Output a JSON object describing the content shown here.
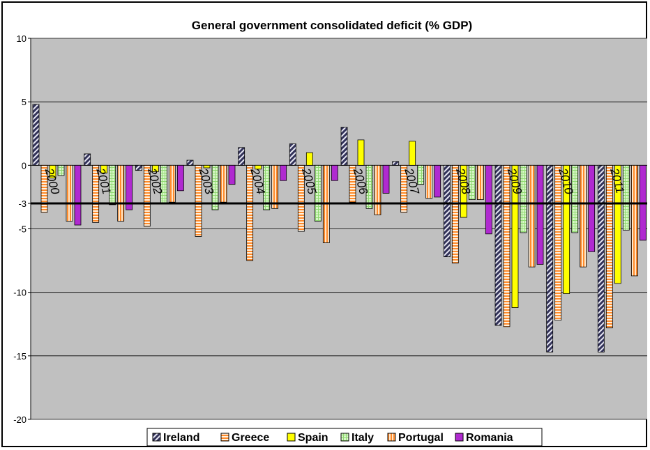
{
  "chart_data": {
    "type": "bar",
    "title": "General government consolidated deficit (% GDP)",
    "xlabel": "",
    "ylabel": "",
    "ylim": [
      -20,
      10
    ],
    "yticks": [
      10,
      5,
      0,
      -3,
      -5,
      -10,
      -15,
      -20
    ],
    "reference_line": -3,
    "grid": true,
    "legend_position": "bottom",
    "categories": [
      "2000",
      "2001",
      "2002",
      "2003",
      "2004",
      "2005",
      "2006",
      "2007",
      "2008",
      "2009",
      "2010",
      "2011"
    ],
    "series": [
      {
        "name": "Ireland",
        "color": "#33335a",
        "pattern": "diagonal-stripes",
        "values": [
          4.8,
          0.9,
          -0.4,
          0.4,
          1.4,
          1.7,
          3.0,
          0.3,
          -7.2,
          -12.6,
          -14.7,
          -14.7
        ]
      },
      {
        "name": "Greece",
        "color": "#ff8a2a",
        "pattern": "horizontal-stripes",
        "values": [
          -3.7,
          -4.5,
          -4.8,
          -5.6,
          -7.5,
          -5.2,
          -2.9,
          -3.7,
          -7.7,
          -12.7,
          -12.2,
          -12.8
        ]
      },
      {
        "name": "Spain",
        "color": "#ffff00",
        "pattern": "solid",
        "values": [
          -1.0,
          -0.6,
          -0.5,
          -0.2,
          -0.3,
          1.0,
          2.0,
          1.9,
          -4.1,
          -11.2,
          -10.1,
          -9.3
        ]
      },
      {
        "name": "Italy",
        "color": "#b8f0a0",
        "pattern": "grid",
        "values": [
          -0.8,
          -3.1,
          -3.0,
          -3.5,
          -3.5,
          -4.4,
          -3.4,
          -1.5,
          -2.7,
          -5.3,
          -5.3,
          -5.1
        ]
      },
      {
        "name": "Portugal",
        "color": "#ff8a2a",
        "pattern": "vertical-stripes",
        "values": [
          -4.4,
          -4.4,
          -2.9,
          -2.9,
          -3.4,
          -6.1,
          -3.9,
          -2.6,
          -2.7,
          -8.0,
          -8.0,
          -8.7
        ]
      },
      {
        "name": "Romania",
        "color": "#b02ad0",
        "pattern": "solid",
        "values": [
          -4.7,
          -3.5,
          -2.0,
          -1.5,
          -1.2,
          -1.2,
          -2.2,
          -2.5,
          -5.4,
          -7.8,
          -6.8,
          -5.9
        ]
      }
    ]
  }
}
